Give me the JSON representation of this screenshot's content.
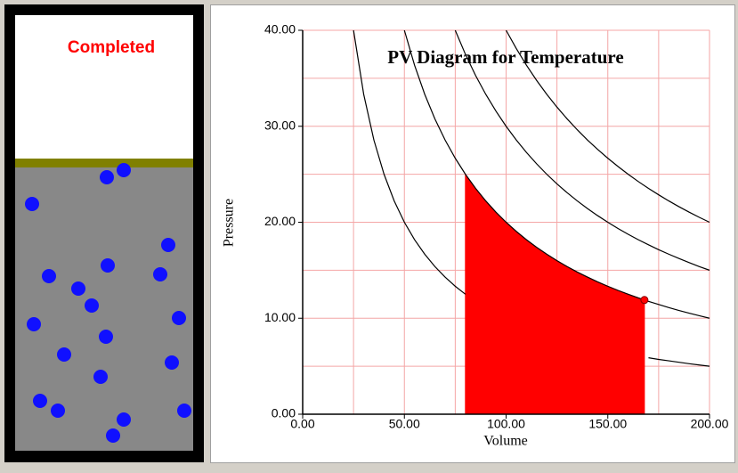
{
  "status": "Completed",
  "chart_data": {
    "type": "line",
    "title": "PV Diagram for Temperature",
    "x_label": "Volume",
    "y_label": "Pressure",
    "xlim": [
      0,
      200
    ],
    "ylim": [
      0,
      40
    ],
    "xticks": [
      {
        "value": 0,
        "label": "0.00"
      },
      {
        "value": 50,
        "label": "50.00"
      },
      {
        "value": 100,
        "label": "100.00"
      },
      {
        "value": 150,
        "label": "150.00"
      },
      {
        "value": 200,
        "label": "200.00"
      }
    ],
    "yticks": [
      {
        "value": 0,
        "label": "0.00"
      },
      {
        "value": 10,
        "label": "10.00"
      },
      {
        "value": 20,
        "label": "20.00"
      },
      {
        "value": 30,
        "label": "30.00"
      },
      {
        "value": 40,
        "label": "40.00"
      }
    ],
    "xgrid": [
      0,
      25,
      50,
      75,
      100,
      125,
      150,
      175,
      200
    ],
    "ygrid": [
      0,
      5,
      10,
      15,
      20,
      25,
      30,
      35,
      40
    ],
    "grid_color": "#f4a6a6",
    "x": [
      25,
      30,
      35,
      40,
      45,
      50,
      55,
      60,
      65,
      70,
      75,
      80,
      85,
      90,
      95,
      100,
      105,
      110,
      115,
      120,
      125,
      130,
      135,
      140,
      145,
      150,
      155,
      160,
      165,
      170,
      175,
      180,
      185,
      190,
      195,
      200
    ],
    "series": [
      {
        "color": "#000000",
        "values": [
          40,
          33.33,
          28.57,
          25,
          22.22,
          20,
          18.18,
          16.67,
          15.38,
          14.29,
          13.33,
          12.5,
          null,
          null,
          null,
          null,
          null,
          null,
          null,
          null,
          null,
          null,
          null,
          null,
          null,
          null,
          null,
          null,
          null,
          5.88,
          5.71,
          5.56,
          5.41,
          5.26,
          5.13,
          5
        ]
      },
      {
        "color": "#000000",
        "values": [
          null,
          null,
          null,
          null,
          null,
          40,
          36.36,
          33.33,
          30.77,
          28.57,
          26.67,
          25,
          23.53,
          22.22,
          21.05,
          20,
          19.05,
          18.18,
          17.39,
          16.67,
          16,
          15.38,
          14.81,
          14.29,
          13.79,
          13.33,
          12.9,
          12.5,
          12.12,
          11.76,
          11.43,
          11.11,
          10.81,
          10.53,
          10.26,
          10
        ]
      },
      {
        "color": "#000000",
        "values": [
          null,
          null,
          null,
          null,
          null,
          null,
          null,
          null,
          null,
          null,
          40,
          37.5,
          35.29,
          33.33,
          31.58,
          30,
          28.57,
          27.27,
          26.09,
          25,
          24,
          23.08,
          22.22,
          21.43,
          20.69,
          20,
          19.35,
          18.75,
          18.18,
          17.65,
          17.14,
          16.67,
          16.22,
          15.79,
          15.38,
          15
        ]
      },
      {
        "color": "#000000",
        "values": [
          null,
          null,
          null,
          null,
          null,
          null,
          null,
          null,
          null,
          null,
          null,
          null,
          null,
          null,
          null,
          40,
          38.1,
          36.36,
          34.78,
          33.33,
          32,
          30.77,
          29.63,
          28.57,
          27.59,
          26.67,
          25.81,
          25,
          24.24,
          23.53,
          22.86,
          22.22,
          21.62,
          21.05,
          20.51,
          20
        ]
      }
    ],
    "shaded": {
      "color": "#ff0000",
      "x": [
        80,
        85,
        90,
        95,
        100,
        105,
        110,
        115,
        120,
        125,
        130,
        135,
        140,
        145,
        150,
        155,
        160,
        165,
        168
      ],
      "values": [
        25,
        23.53,
        22.22,
        21.05,
        20,
        19.05,
        18.18,
        17.39,
        16.67,
        16,
        15.38,
        14.81,
        14.29,
        13.79,
        13.33,
        12.9,
        12.5,
        12.12,
        11.9
      ]
    },
    "marker": {
      "x": 168,
      "y": 11.9,
      "color": "#ff0000"
    }
  }
}
